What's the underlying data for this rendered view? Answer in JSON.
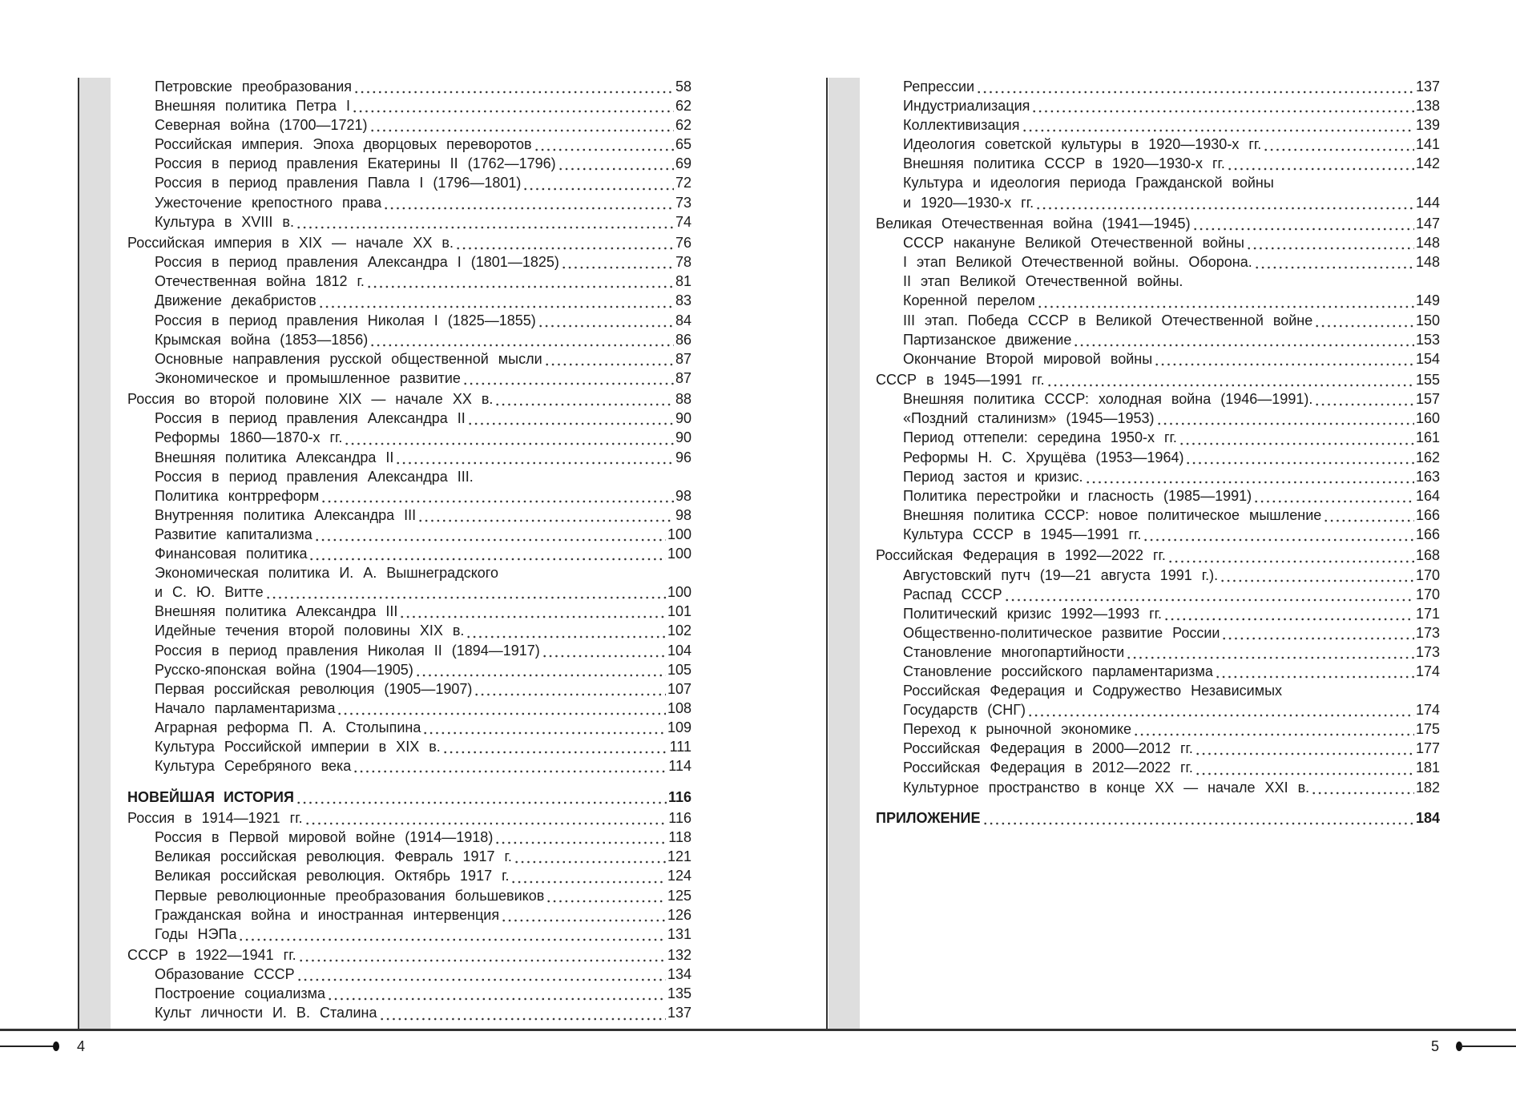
{
  "left_page": {
    "page_number": "4",
    "entries": [
      {
        "level": "sub",
        "title": "Петровские преобразования",
        "page": "58"
      },
      {
        "level": "sub",
        "title": "Внешняя политика Петра I",
        "page": "62"
      },
      {
        "level": "sub",
        "title": "Северная война (1700—1721)",
        "page": "62"
      },
      {
        "level": "sub",
        "title": "Российская империя. Эпоха дворцовых переворотов",
        "page": "65"
      },
      {
        "level": "sub",
        "title": "Россия в период правления Екатерины II (1762—1796)",
        "page": "69"
      },
      {
        "level": "sub",
        "title": "Россия в период правления Павла I (1796—1801)",
        "page": "72"
      },
      {
        "level": "sub",
        "title": "Ужесточение крепостного права",
        "page": "73"
      },
      {
        "level": "sub",
        "title": "Культура в XVIII в.",
        "page": "74"
      },
      {
        "level": "main",
        "title": "Российская империя в XIX — начале XX в.",
        "page": "76"
      },
      {
        "level": "sub",
        "title": "Россия в период правления Александра I (1801—1825)",
        "page": "78"
      },
      {
        "level": "sub",
        "title": "Отечественная война 1812 г.",
        "page": "81"
      },
      {
        "level": "sub",
        "title": "Движение декабристов",
        "page": "83"
      },
      {
        "level": "sub",
        "title": "Россия в период правления Николая I (1825—1855)",
        "page": "84"
      },
      {
        "level": "sub",
        "title": "Крымская война (1853—1856)",
        "page": "86"
      },
      {
        "level": "sub",
        "title": "Основные направления русской общественной мысли",
        "page": "87"
      },
      {
        "level": "sub",
        "title": "Экономическое и промышленное развитие",
        "page": "87"
      },
      {
        "level": "main",
        "title": "Россия во второй половине XIX — начале XX в.",
        "page": "88"
      },
      {
        "level": "sub",
        "title": "Россия в период правления Александра II",
        "page": "90"
      },
      {
        "level": "sub",
        "title": "Реформы 1860—1870-х гг.",
        "page": "90"
      },
      {
        "level": "sub",
        "title": "Внешняя политика Александра II",
        "page": "96"
      },
      {
        "level": "sub",
        "title": "Россия в период правления Александра III.",
        "page": ""
      },
      {
        "level": "sub",
        "title": "Политика контрреформ",
        "page": "98"
      },
      {
        "level": "sub",
        "title": "Внутренняя политика Александра III",
        "page": "98"
      },
      {
        "level": "sub",
        "title": "Развитие капитализма",
        "page": "100"
      },
      {
        "level": "sub",
        "title": "Финансовая политика",
        "page": "100"
      },
      {
        "level": "sub",
        "title": "Экономическая политика И. А. Вышнеградского",
        "page": ""
      },
      {
        "level": "sub",
        "title": "и С. Ю. Витте",
        "page": "100"
      },
      {
        "level": "sub",
        "title": "Внешняя политика Александра III",
        "page": "101"
      },
      {
        "level": "sub",
        "title": "Идейные течения второй половины XIX в.",
        "page": "102"
      },
      {
        "level": "sub",
        "title": "Россия в период правления Николая II (1894—1917)",
        "page": "104"
      },
      {
        "level": "sub",
        "title": "Русско-японская война (1904—1905)",
        "page": "105"
      },
      {
        "level": "sub",
        "title": "Первая российская революция (1905—1907)",
        "page": "107"
      },
      {
        "level": "sub",
        "title": "Начало парламентаризма",
        "page": "108"
      },
      {
        "level": "sub",
        "title": "Аграрная реформа П. А. Столыпина",
        "page": "109"
      },
      {
        "level": "sub",
        "title": "Культура Российской империи в XIX в.",
        "page": "111"
      },
      {
        "level": "sub",
        "title": "Культура Серебряного века",
        "page": "114"
      },
      {
        "level": "bold",
        "title": "НОВЕЙШАЯ ИСТОРИЯ",
        "page": "116"
      },
      {
        "level": "main",
        "title": "Россия в 1914—1921 гг.",
        "page": "116"
      },
      {
        "level": "sub",
        "title": "Россия в Первой мировой войне (1914—1918)",
        "page": "118"
      },
      {
        "level": "sub",
        "title": "Великая российская революция. Февраль 1917 г.",
        "page": "121"
      },
      {
        "level": "sub",
        "title": "Великая российская революция. Октябрь 1917 г.",
        "page": "124"
      },
      {
        "level": "sub",
        "title": "Первые революционные преобразования большевиков",
        "page": "125"
      },
      {
        "level": "sub",
        "title": "Гражданская война и иностранная интервенция",
        "page": "126"
      },
      {
        "level": "sub",
        "title": "Годы НЭПа",
        "page": "131"
      },
      {
        "level": "main",
        "title": "СССР в 1922—1941 гг.",
        "page": "132"
      },
      {
        "level": "sub",
        "title": "Образование СССР",
        "page": "134"
      },
      {
        "level": "sub",
        "title": "Построение социализма",
        "page": "135"
      },
      {
        "level": "sub",
        "title": "Культ личности И. В. Сталина",
        "page": "137"
      }
    ]
  },
  "right_page": {
    "page_number": "5",
    "entries": [
      {
        "level": "sub",
        "title": "Репрессии",
        "page": "137"
      },
      {
        "level": "sub",
        "title": "Индустриализация",
        "page": "138"
      },
      {
        "level": "sub",
        "title": "Коллективизация",
        "page": "139"
      },
      {
        "level": "sub",
        "title": "Идеология советской культуры в 1920—1930-х гг.",
        "page": "141"
      },
      {
        "level": "sub",
        "title": "Внешняя политика СССР в 1920—1930-х гг.",
        "page": "142"
      },
      {
        "level": "sub",
        "title": "Культура и идеология периода Гражданской войны",
        "page": ""
      },
      {
        "level": "sub",
        "title": "и 1920—1930-х гг.",
        "page": "144"
      },
      {
        "level": "main",
        "title": "Великая Отечественная война (1941—1945)",
        "page": "147"
      },
      {
        "level": "sub",
        "title": "СССР накануне Великой Отечественной войны",
        "page": "148"
      },
      {
        "level": "sub",
        "title": "I этап Великой Отечественной войны. Оборона.",
        "page": "148"
      },
      {
        "level": "sub",
        "title": "II этап Великой Отечественной войны.",
        "page": ""
      },
      {
        "level": "sub",
        "title": "Коренной перелом",
        "page": "149"
      },
      {
        "level": "sub",
        "title": "III этап. Победа СССР в Великой Отечественной войне",
        "page": "150"
      },
      {
        "level": "sub",
        "title": "Партизанское движение",
        "page": "153"
      },
      {
        "level": "sub",
        "title": "Окончание Второй мировой войны",
        "page": "154"
      },
      {
        "level": "main",
        "title": "СССР в 1945—1991 гг.",
        "page": "155"
      },
      {
        "level": "sub",
        "title": "Внешняя политика СССР: холодная война (1946—1991).",
        "page": "157"
      },
      {
        "level": "sub",
        "title": "«Поздний сталинизм» (1945—1953)",
        "page": "160"
      },
      {
        "level": "sub",
        "title": "Период оттепели: середина 1950-х гг.",
        "page": "161"
      },
      {
        "level": "sub",
        "title": "Реформы Н. С. Хрущёва (1953—1964)",
        "page": "162"
      },
      {
        "level": "sub",
        "title": "Период застоя и кризис.",
        "page": "163"
      },
      {
        "level": "sub",
        "title": "Политика перестройки и гласность (1985—1991)",
        "page": "164"
      },
      {
        "level": "sub",
        "title": "Внешняя политика СССР: новое политическое мышление",
        "page": "166"
      },
      {
        "level": "sub",
        "title": "Культура СССР в 1945—1991 гг.",
        "page": "166"
      },
      {
        "level": "main",
        "title": "Российская Федерация в 1992—2022 гг.",
        "page": "168"
      },
      {
        "level": "sub",
        "title": "Августовский путч (19—21 августа 1991 г.).",
        "page": "170"
      },
      {
        "level": "sub",
        "title": "Распад СССР",
        "page": "170"
      },
      {
        "level": "sub",
        "title": "Политический кризис 1992—1993 гг.",
        "page": "171"
      },
      {
        "level": "sub",
        "title": "Общественно-политическое развитие России",
        "page": "173"
      },
      {
        "level": "sub",
        "title": "Становление многопартийности",
        "page": "173"
      },
      {
        "level": "sub",
        "title": "Становление российского парламентаризма",
        "page": "174"
      },
      {
        "level": "sub",
        "title": "Российская Федерация и Содружество Независимых",
        "page": ""
      },
      {
        "level": "sub",
        "title": "Государств (СНГ)",
        "page": "174"
      },
      {
        "level": "sub",
        "title": "Переход к рыночной экономике",
        "page": "175"
      },
      {
        "level": "sub",
        "title": "Российская Федерация в 2000—2012 гг.",
        "page": "177"
      },
      {
        "level": "sub",
        "title": "Российская Федерация в 2012—2022 гг.",
        "page": "181"
      },
      {
        "level": "sub",
        "title": "Культурное пространство в конце XX — начале XXI в.",
        "page": "182"
      },
      {
        "level": "bold",
        "title": "ПРИЛОЖЕНИЕ",
        "page": "184"
      }
    ]
  }
}
